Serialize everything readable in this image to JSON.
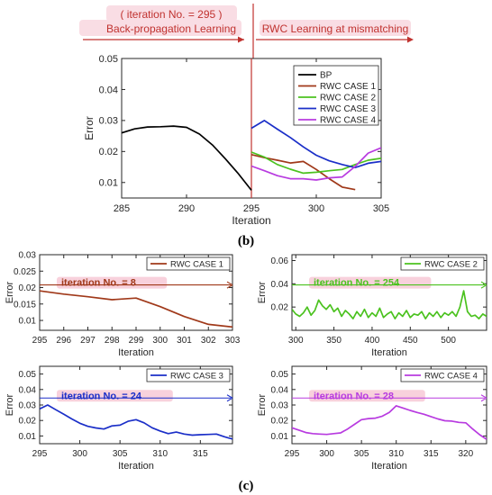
{
  "colors": {
    "BP": "#000000",
    "RWC CASE 1": "#a0391a",
    "RWC CASE 2": "#4bc21f",
    "RWC CASE 3": "#1b2fc8",
    "RWC CASE 4": "#b83be0",
    "annotation_red": "#c0322f",
    "highlight": "#f7c9d6"
  },
  "annotations": {
    "iteration_label": "( iteration No. = 295 )",
    "bp_label": "Back-propagation Learning",
    "rwc_label": "RWC Learning at mismatching",
    "label_b": "(b)",
    "label_c": "(c)"
  },
  "chart_data": [
    {
      "id": "main",
      "type": "line",
      "xlabel": "Iteration",
      "ylabel": "Error",
      "xlim": [
        285,
        305
      ],
      "ylim": [
        0.005,
        0.05
      ],
      "xticks": [
        285,
        290,
        295,
        300,
        305
      ],
      "yticks": [
        0.01,
        0.02,
        0.03,
        0.04,
        0.05
      ],
      "ytick_labels": [
        "0.01",
        "0.02",
        "0.03",
        "0.04",
        "0.05"
      ],
      "vline_x": 295,
      "legend_position": "top-right",
      "series": [
        {
          "name": "BP",
          "x": [
            285,
            286,
            287,
            288,
            289,
            290,
            291,
            292,
            293,
            294,
            295
          ],
          "y": [
            0.026,
            0.0273,
            0.0279,
            0.028,
            0.0282,
            0.0278,
            0.0256,
            0.0221,
            0.0176,
            0.0128,
            0.0075
          ]
        },
        {
          "name": "RWC CASE 1",
          "x": [
            295,
            296,
            297,
            298,
            299,
            300,
            301,
            302,
            303
          ],
          "y": [
            0.019,
            0.018,
            0.0172,
            0.0163,
            0.0168,
            0.0142,
            0.0112,
            0.0085,
            0.0077
          ]
        },
        {
          "name": "RWC CASE 2",
          "x": [
            295,
            296,
            297,
            298,
            299,
            300,
            301,
            302,
            303,
            304,
            305
          ],
          "y": [
            0.0198,
            0.0182,
            0.0158,
            0.0143,
            0.013,
            0.0133,
            0.0138,
            0.0142,
            0.0158,
            0.0172,
            0.0178
          ]
        },
        {
          "name": "RWC CASE 3",
          "x": [
            295,
            296,
            297,
            298,
            299,
            300,
            301,
            302,
            303,
            304,
            305
          ],
          "y": [
            0.0275,
            0.03,
            0.0272,
            0.0245,
            0.0215,
            0.0188,
            0.017,
            0.0158,
            0.0148,
            0.0162,
            0.0168
          ]
        },
        {
          "name": "RWC CASE 4",
          "x": [
            295,
            296,
            297,
            298,
            299,
            300,
            301,
            302,
            303,
            304,
            305
          ],
          "y": [
            0.0153,
            0.0138,
            0.0122,
            0.0112,
            0.0112,
            0.0108,
            0.0115,
            0.0118,
            0.0152,
            0.0195,
            0.0212
          ]
        }
      ]
    },
    {
      "id": "case1",
      "type": "line",
      "xlabel": "Iteration",
      "ylabel": "Error",
      "xlim": [
        295,
        303
      ],
      "ylim": [
        0.007,
        0.03
      ],
      "xticks": [
        295,
        296,
        297,
        298,
        299,
        300,
        301,
        302,
        303
      ],
      "yticks": [
        0.01,
        0.015,
        0.02,
        0.025,
        0.03
      ],
      "ytick_labels": [
        "0.01",
        "0.015",
        "0.02",
        "0.025",
        "0.03"
      ],
      "legend": "RWC CASE 1",
      "legend_position": "top-right",
      "annotation": "iteration No. = 8",
      "arrow_y": 0.0208,
      "series": [
        {
          "name": "RWC CASE 1",
          "x": [
            295,
            296,
            297,
            298,
            299,
            300,
            301,
            302,
            303
          ],
          "y": [
            0.019,
            0.018,
            0.0172,
            0.0163,
            0.0168,
            0.0142,
            0.0112,
            0.0088,
            0.008
          ]
        }
      ]
    },
    {
      "id": "case2",
      "type": "line",
      "xlabel": "Iteration",
      "ylabel": "Error",
      "xlim": [
        295,
        550
      ],
      "ylim": [
        0,
        0.065
      ],
      "xticks": [
        300,
        350,
        400,
        450,
        500
      ],
      "yticks": [
        0.02,
        0.04,
        0.06
      ],
      "ytick_labels": [
        "0.02",
        "0.04",
        "0.06"
      ],
      "legend": "RWC CASE 2",
      "legend_position": "top-right",
      "annotation": "iteration No. = 254",
      "arrow_y": 0.039,
      "series": [
        {
          "name": "RWC CASE 2",
          "x": [
            295,
            300,
            305,
            310,
            315,
            320,
            325,
            330,
            335,
            340,
            345,
            350,
            355,
            360,
            365,
            370,
            375,
            380,
            385,
            390,
            395,
            400,
            405,
            410,
            415,
            420,
            425,
            430,
            435,
            440,
            445,
            450,
            455,
            460,
            465,
            470,
            475,
            480,
            485,
            490,
            495,
            500,
            505,
            510,
            515,
            520,
            525,
            530,
            535,
            540,
            545,
            550
          ],
          "y": [
            0.018,
            0.014,
            0.012,
            0.015,
            0.02,
            0.013,
            0.017,
            0.026,
            0.021,
            0.018,
            0.022,
            0.016,
            0.019,
            0.012,
            0.017,
            0.014,
            0.01,
            0.016,
            0.012,
            0.018,
            0.011,
            0.015,
            0.012,
            0.019,
            0.011,
            0.014,
            0.016,
            0.01,
            0.015,
            0.012,
            0.017,
            0.011,
            0.014,
            0.013,
            0.016,
            0.01,
            0.015,
            0.012,
            0.016,
            0.011,
            0.015,
            0.013,
            0.016,
            0.012,
            0.02,
            0.034,
            0.016,
            0.012,
            0.013,
            0.01,
            0.014,
            0.012
          ]
        }
      ]
    },
    {
      "id": "case3",
      "type": "line",
      "xlabel": "Iteration",
      "ylabel": "Error",
      "xlim": [
        295,
        319
      ],
      "ylim": [
        0.005,
        0.055
      ],
      "xticks": [
        295,
        300,
        305,
        310,
        315
      ],
      "yticks": [
        0.01,
        0.02,
        0.03,
        0.04,
        0.05
      ],
      "ytick_labels": [
        "0.01",
        "0.02",
        "0.03",
        "0.04",
        "0.05"
      ],
      "legend": "RWC CASE 3",
      "legend_position": "top-right",
      "annotation": "iteration No. = 24",
      "arrow_y": 0.0345,
      "series": [
        {
          "name": "RWC CASE 3",
          "x": [
            295,
            296,
            297,
            298,
            299,
            300,
            301,
            302,
            303,
            304,
            305,
            306,
            307,
            308,
            309,
            310,
            311,
            312,
            313,
            314,
            315,
            316,
            317,
            318,
            319
          ],
          "y": [
            0.0275,
            0.03,
            0.027,
            0.024,
            0.021,
            0.0182,
            0.0162,
            0.0152,
            0.0145,
            0.0165,
            0.017,
            0.0195,
            0.0205,
            0.0185,
            0.0153,
            0.0132,
            0.0115,
            0.0125,
            0.0112,
            0.0105,
            0.0108,
            0.011,
            0.0112,
            0.0095,
            0.008
          ]
        }
      ]
    },
    {
      "id": "case4",
      "type": "line",
      "xlabel": "Iteration",
      "ylabel": "Error",
      "xlim": [
        295,
        323
      ],
      "ylim": [
        0.005,
        0.055
      ],
      "xticks": [
        295,
        300,
        305,
        310,
        315,
        320
      ],
      "yticks": [
        0.01,
        0.02,
        0.03,
        0.04,
        0.05
      ],
      "ytick_labels": [
        "0.01",
        "0.02",
        "0.03",
        "0.04",
        "0.05"
      ],
      "legend": "RWC CASE 4",
      "legend_position": "top-right",
      "annotation": "iteration No. = 28",
      "arrow_y": 0.0345,
      "series": [
        {
          "name": "RWC CASE 4",
          "x": [
            295,
            296,
            297,
            298,
            299,
            300,
            301,
            302,
            303,
            304,
            305,
            306,
            307,
            308,
            309,
            310,
            311,
            312,
            313,
            314,
            315,
            316,
            317,
            318,
            319,
            320,
            321,
            322,
            323
          ],
          "y": [
            0.0153,
            0.0138,
            0.0122,
            0.0115,
            0.0112,
            0.011,
            0.0115,
            0.012,
            0.0145,
            0.0175,
            0.0205,
            0.0212,
            0.0215,
            0.0228,
            0.0252,
            0.0295,
            0.028,
            0.0265,
            0.0252,
            0.024,
            0.0225,
            0.021,
            0.0198,
            0.0196,
            0.0188,
            0.0185,
            0.0145,
            0.0108,
            0.0078
          ]
        }
      ]
    }
  ]
}
